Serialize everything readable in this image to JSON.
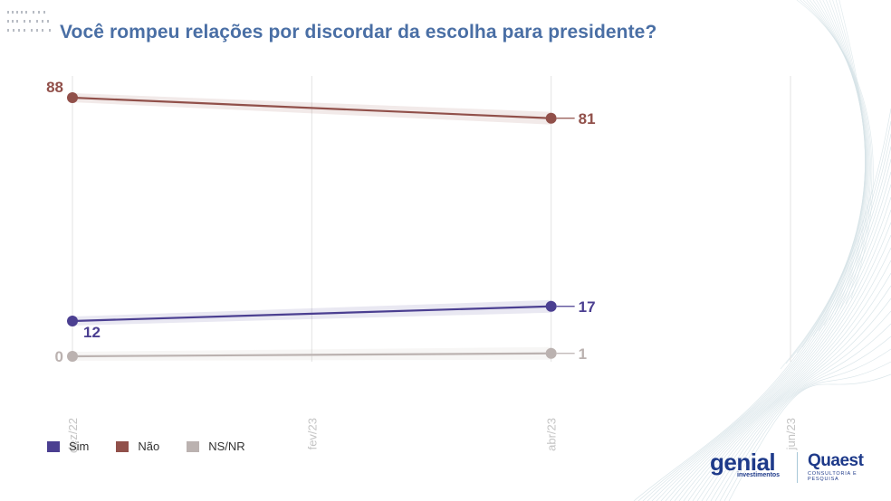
{
  "title": "Você rompeu relações por discordar da escolha para presidente?",
  "chart_data": {
    "type": "line",
    "x": [
      "dez/22",
      "abr/23"
    ],
    "x_ticks": [
      "dez/22",
      "fev/23",
      "abr/23",
      "jun/23"
    ],
    "series": [
      {
        "name": "Sim",
        "values": [
          12,
          17
        ],
        "color": "#4b3f91",
        "start_label": "12",
        "end_label": "17"
      },
      {
        "name": "Não",
        "values": [
          88,
          81
        ],
        "color": "#91504a",
        "start_label": "88",
        "end_label": "81"
      },
      {
        "name": "NS/NR",
        "values": [
          0,
          1
        ],
        "color": "#bbb2b0",
        "start_label": "0",
        "end_label": "1"
      }
    ],
    "ylim": [
      0,
      88
    ],
    "grid": "vertical",
    "legend": "bottom-left"
  },
  "brand": {
    "genial": "genial",
    "genial_sub": "investimentos",
    "quaest": "Quaest",
    "quaest_sub": "CONSULTORIA E PESQUISA"
  }
}
